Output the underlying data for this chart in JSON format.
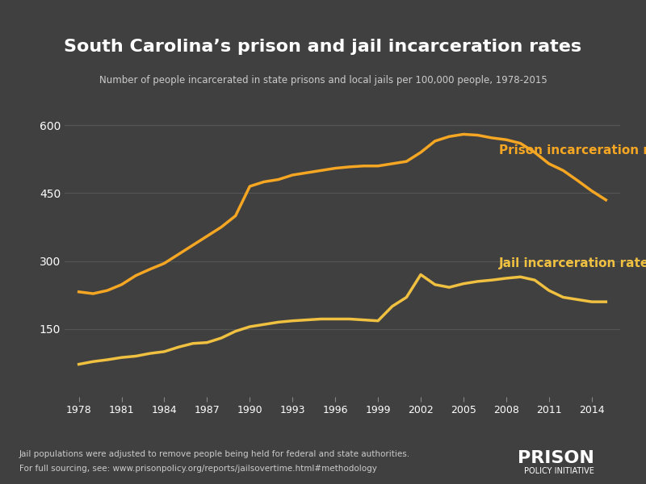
{
  "title": "South Carolina’s prison and jail incarceration rates",
  "subtitle": "Number of people incarcerated in state prisons and local jails per 100,000 people, 1978-2015",
  "background_color": "#404040",
  "text_color": "#ffffff",
  "grid_color": "#555555",
  "footnote_line1": "Jail populations were adjusted to remove people being held for federal and state authorities.",
  "footnote_line2": "For full sourcing, see: www.prisonpolicy.org/reports/jailsovertime.html#methodology",
  "logo_text1": "PRISON",
  "logo_text2": "POLICY INITIATIVE",
  "prison_color": "#f5a623",
  "jail_color": "#f0c040",
  "prison_label": "Prison incarceration rate",
  "jail_label": "Jail incarceration rate",
  "ylim": [
    0,
    620
  ],
  "yticks": [
    150,
    300,
    450,
    600
  ],
  "xticks": [
    1978,
    1981,
    1984,
    1987,
    1990,
    1993,
    1996,
    1999,
    2002,
    2005,
    2008,
    2011,
    2014
  ],
  "prison_data": {
    "years": [
      1978,
      1979,
      1980,
      1981,
      1982,
      1983,
      1984,
      1985,
      1986,
      1987,
      1988,
      1989,
      1990,
      1991,
      1992,
      1993,
      1994,
      1995,
      1996,
      1997,
      1998,
      1999,
      2000,
      2001,
      2002,
      2003,
      2004,
      2005,
      2006,
      2007,
      2008,
      2009,
      2010,
      2011,
      2012,
      2013,
      2014,
      2015
    ],
    "values": [
      232,
      228,
      235,
      248,
      268,
      282,
      295,
      315,
      335,
      355,
      375,
      400,
      465,
      475,
      480,
      490,
      495,
      500,
      505,
      508,
      510,
      510,
      515,
      520,
      540,
      565,
      575,
      580,
      578,
      572,
      568,
      560,
      540,
      515,
      500,
      478,
      455,
      435
    ]
  },
  "jail_data": {
    "years": [
      1978,
      1979,
      1980,
      1981,
      1982,
      1983,
      1984,
      1985,
      1986,
      1987,
      1988,
      1989,
      1990,
      1991,
      1992,
      1993,
      1994,
      1995,
      1996,
      1997,
      1998,
      1999,
      2000,
      2001,
      2002,
      2003,
      2004,
      2005,
      2006,
      2007,
      2008,
      2009,
      2010,
      2011,
      2012,
      2013,
      2014,
      2015
    ],
    "values": [
      72,
      78,
      82,
      87,
      90,
      96,
      100,
      110,
      118,
      120,
      130,
      145,
      155,
      160,
      165,
      168,
      170,
      172,
      172,
      172,
      170,
      168,
      200,
      220,
      270,
      248,
      242,
      250,
      255,
      258,
      262,
      265,
      258,
      235,
      220,
      215,
      210,
      210
    ]
  }
}
